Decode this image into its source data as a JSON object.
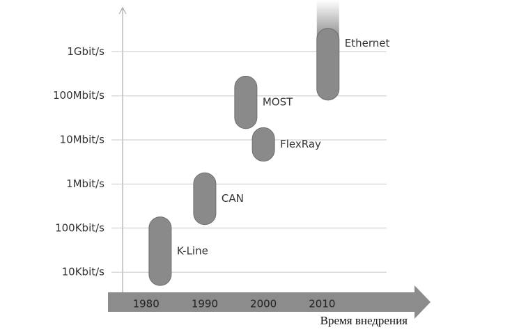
{
  "chart_data": {
    "type": "range_bar",
    "bars": [
      {
        "name": "K-Line",
        "year": 1982.4,
        "low": 5000,
        "high": 180000
      },
      {
        "name": "CAN",
        "year": 1990,
        "low": 120000,
        "high": 1800000
      },
      {
        "name": "MOST",
        "year": 1997,
        "low": 18000000,
        "high": 280000000
      },
      {
        "name": "FlexRay",
        "year": 2000,
        "low": 3300000,
        "high": 19000000
      },
      {
        "name": "Ethernet",
        "year": 2011,
        "low": 80000000,
        "high": 3400000000,
        "open_ended": true
      }
    ],
    "color": "#8a8a8a",
    "log_scale": true,
    "ylim": [
      3500,
      10000000000
    ],
    "yticks": [
      {
        "value": 10000,
        "label": "10Kbit/s"
      },
      {
        "value": 100000,
        "label": "100Kbit/s"
      },
      {
        "value": 1000000,
        "label": "1Mbit/s"
      },
      {
        "value": 10000000,
        "label": "10Mbit/s"
      },
      {
        "value": 100000000,
        "label": "100Mbit/s"
      },
      {
        "value": 1000000000,
        "label": "1Gbit/s"
      }
    ],
    "xlim": [
      1976,
      2021
    ],
    "xticks": [
      1980,
      1990,
      2000,
      2010
    ],
    "xlabel": "Время внедрения",
    "grid": true
  }
}
